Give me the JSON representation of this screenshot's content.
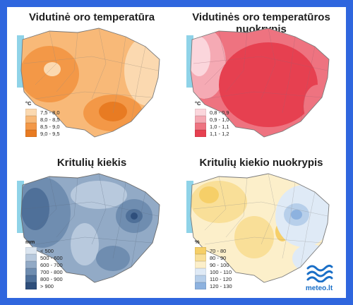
{
  "panels": [
    {
      "title": "Vidutinė oro temperatūra",
      "legend_unit": "°C",
      "legend": [
        {
          "label": "7,5 - 8,0",
          "color": "#fbd9b0"
        },
        {
          "label": "8,0 - 8,5",
          "color": "#f8b978"
        },
        {
          "label": "8,5 - 9,0",
          "color": "#f39847"
        },
        {
          "label": "9,0 - 9,5",
          "color": "#e87b22"
        }
      ]
    },
    {
      "title": "Vidutinės oro temperatūros nuokrypis",
      "legend_unit": "°C",
      "legend": [
        {
          "label": "0,8 - 0,9",
          "color": "#fbd6dc"
        },
        {
          "label": "0,9 - 1,0",
          "color": "#f5aab4"
        },
        {
          "label": "1,0 - 1,1",
          "color": "#ee7380"
        },
        {
          "label": "1,1 - 1,2",
          "color": "#e64050"
        }
      ]
    },
    {
      "title": "Kritulių kiekis",
      "legend_unit": "mm",
      "legend": [
        {
          "label": "< 500",
          "color": "#dbe5f0"
        },
        {
          "label": "500 - 600",
          "color": "#b8c9dd"
        },
        {
          "label": "600 - 700",
          "color": "#92aac6"
        },
        {
          "label": "700 - 800",
          "color": "#6f8db0"
        },
        {
          "label": "800 - 900",
          "color": "#4f7099"
        },
        {
          "label": "> 900",
          "color": "#2f4f7c"
        }
      ]
    },
    {
      "title": "Kritulių kiekio nuokrypis",
      "legend_unit": "%",
      "legend": [
        {
          "label": "70 - 80",
          "color": "#f6cf68"
        },
        {
          "label": "80 - 90",
          "color": "#f9df98"
        },
        {
          "label": "90 - 100",
          "color": "#fcefca"
        },
        {
          "label": "100 - 110",
          "color": "#dfeaf6"
        },
        {
          "label": "110 - 120",
          "color": "#b7cfea"
        },
        {
          "label": "120 - 130",
          "color": "#8db2df"
        }
      ]
    }
  ],
  "logo": {
    "text": "meteo.lt",
    "color": "#1a6fc7"
  },
  "sea_color": "#8fd3e8",
  "border_color": "#7a7a7a"
}
